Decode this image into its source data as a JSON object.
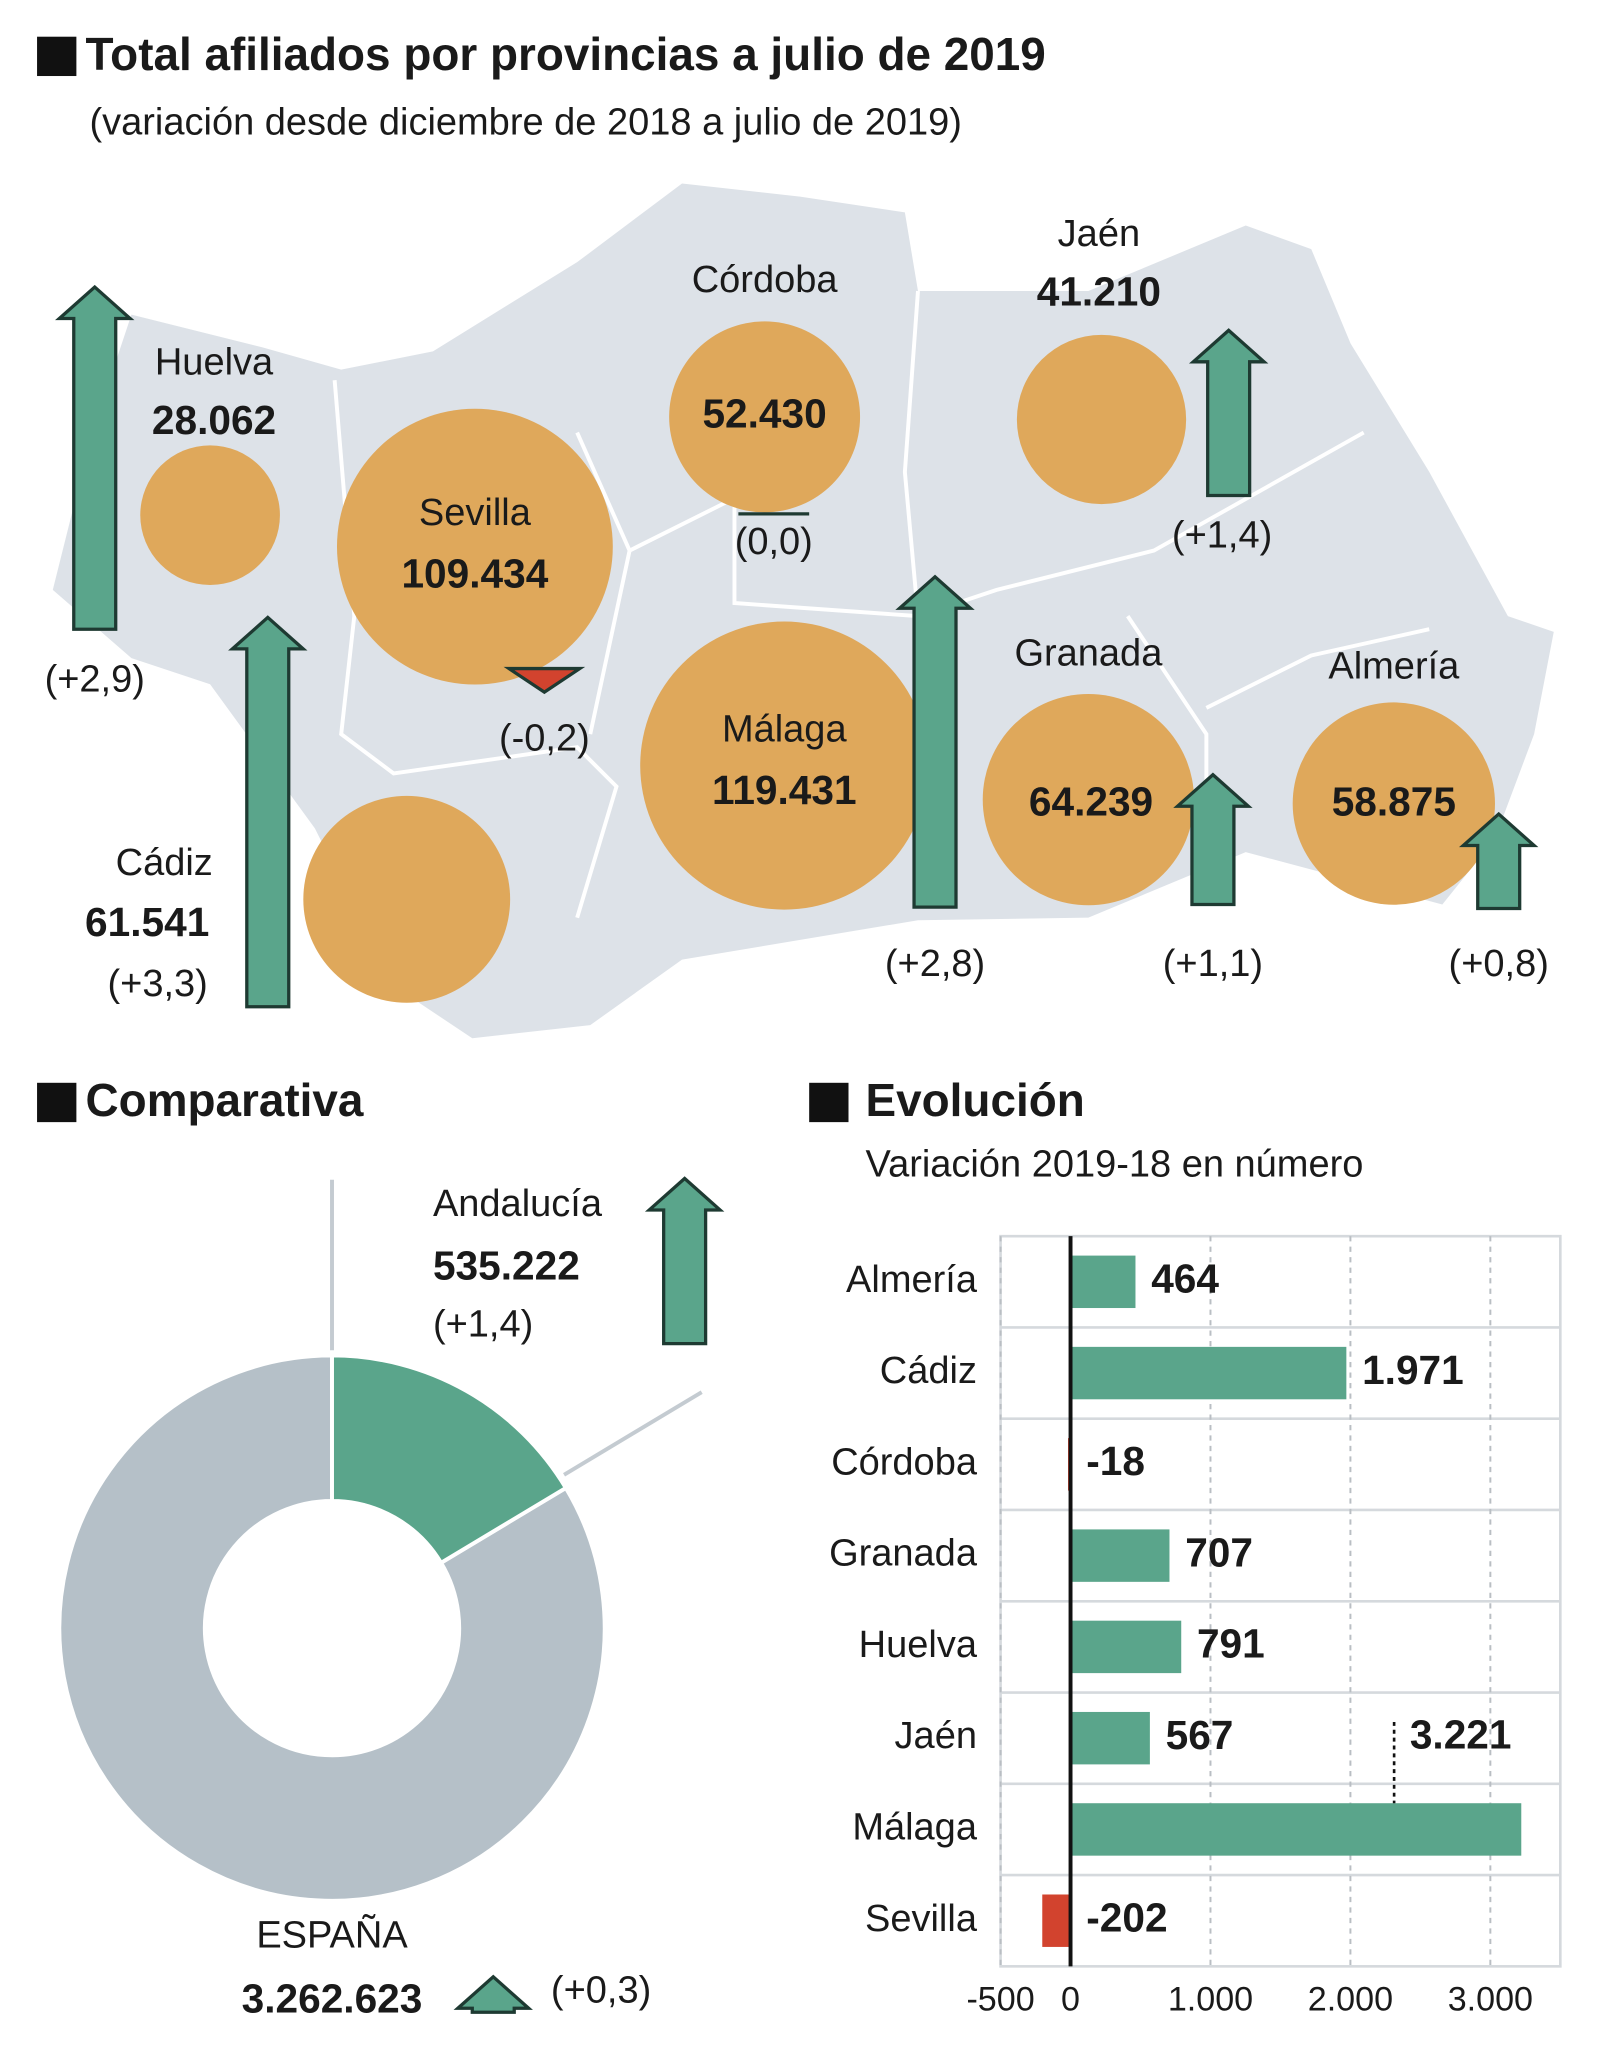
{
  "chart_data": [
    {
      "type": "bubble-map",
      "title": "Total afiliados por provincias a julio de 2019",
      "subtitle": "(variación desde diciembre de 2018 a julio de 2019)",
      "categories": [
        "Huelva",
        "Sevilla",
        "Córdoba",
        "Jaén",
        "Cádiz",
        "Málaga",
        "Granada",
        "Almería"
      ],
      "values": [
        28062,
        109434,
        52430,
        41210,
        61541,
        119431,
        64239,
        58875
      ],
      "value_labels": [
        "28.062",
        "109.434",
        "52.430",
        "41.210",
        "61.541",
        "119.431",
        "64.239",
        "58.875"
      ],
      "changes": [
        2.9,
        -0.2,
        0.0,
        1.4,
        3.3,
        2.8,
        1.1,
        0.8
      ],
      "change_labels": [
        "(+2,9)",
        "(-0,2)",
        "(0,0)",
        "(+1,4)",
        "(+3,3)",
        "(+2,8)",
        "(+1,1)",
        "(+0,8)"
      ],
      "color": "#dfa85b",
      "up_color": "#5aa58b",
      "down_color": "#d2432e"
    },
    {
      "type": "pie",
      "title": "Comparativa",
      "categories": [
        "Andalucía",
        "ESPAÑA"
      ],
      "values": [
        535222,
        3262623
      ],
      "value_labels": [
        "535.222",
        "3.262.623"
      ],
      "changes": [
        1.4,
        0.3
      ],
      "change_labels": [
        "(+1,4)",
        "(+0,3)"
      ],
      "colors": [
        "#5aa58b",
        "#b5c0c8"
      ],
      "up_color": "#5aa58b"
    },
    {
      "type": "bar",
      "title": "Evolución",
      "subtitle": "Variación 2019-18 en número",
      "categories": [
        "Almería",
        "Cádiz",
        "Córdoba",
        "Granada",
        "Huelva",
        "Jaén",
        "Málaga",
        "Sevilla"
      ],
      "values": [
        464,
        1971,
        -18,
        707,
        791,
        567,
        3221,
        -202
      ],
      "value_labels": [
        "464",
        "1.971",
        "-18",
        "707",
        "791",
        "567",
        "3.221",
        "-202"
      ],
      "xlim": [
        -500,
        3500
      ],
      "xticks": [
        -500,
        0,
        {
          "value": 1000,
          "label": "1.000"
        },
        {
          "value": 2000,
          "label": "2.000"
        },
        {
          "value": 3000,
          "label": "3.000"
        }
      ],
      "positive_color": "#5aa58b",
      "negative_color": "#d2432e",
      "grid": true
    }
  ]
}
